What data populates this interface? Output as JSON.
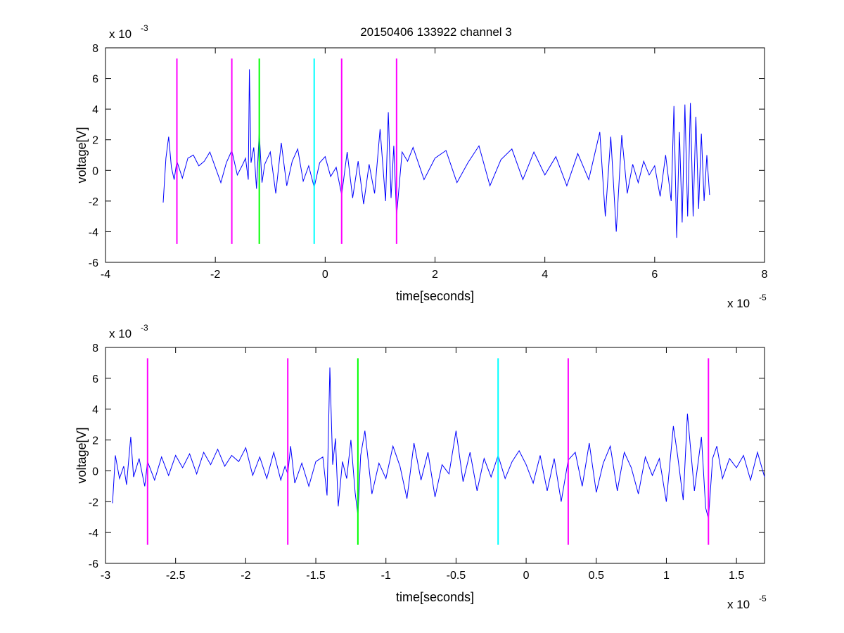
{
  "title": "20150406 133922 channel 3",
  "chart_data": [
    {
      "type": "line",
      "xlabel": "time[seconds]",
      "ylabel": "voltage[V]",
      "x_multiplier_label": "x 10",
      "x_multiplier_exp": "-5",
      "y_multiplier_label": "x 10",
      "y_multiplier_exp": "-3",
      "xlim": [
        -4,
        8
      ],
      "ylim": [
        -6,
        8
      ],
      "xticks": [
        -4,
        -2,
        0,
        2,
        4,
        6,
        8
      ],
      "yticks": [
        -6,
        -4,
        -2,
        0,
        2,
        4,
        6,
        8
      ],
      "xtick_labels": [
        "-4",
        "-2",
        "0",
        "2",
        "4",
        "6",
        "8"
      ],
      "ytick_labels": [
        "-6",
        "-4",
        "-2",
        "0",
        "2",
        "4",
        "6",
        "8"
      ],
      "grid": false,
      "line_color": "#0000ff",
      "series": [
        {
          "x": [
            -2.95,
            -2.9,
            -2.85,
            -2.8,
            -2.75,
            -2.7,
            -2.6,
            -2.5,
            -2.4,
            -2.3,
            -2.2,
            -2.1,
            -2.0,
            -1.9,
            -1.8,
            -1.7,
            -1.6,
            -1.5,
            -1.45,
            -1.4,
            -1.38,
            -1.35,
            -1.3,
            -1.25,
            -1.2,
            -1.15,
            -1.1,
            -1.0,
            -0.9,
            -0.8,
            -0.7,
            -0.6,
            -0.5,
            -0.4,
            -0.3,
            -0.2,
            -0.1,
            0.0,
            0.1,
            0.2,
            0.3,
            0.4,
            0.5,
            0.6,
            0.7,
            0.8,
            0.9,
            1.0,
            1.1,
            1.15,
            1.2,
            1.25,
            1.3,
            1.4,
            1.5,
            1.6,
            1.8,
            2.0,
            2.2,
            2.4,
            2.6,
            2.8,
            3.0,
            3.2,
            3.4,
            3.6,
            3.8,
            4.0,
            4.2,
            4.4,
            4.6,
            4.8,
            5.0,
            5.1,
            5.2,
            5.3,
            5.4,
            5.5,
            5.6,
            5.7,
            5.8,
            5.9,
            6.0,
            6.1,
            6.2,
            6.3,
            6.35,
            6.4,
            6.45,
            6.5,
            6.55,
            6.6,
            6.65,
            6.7,
            6.75,
            6.8,
            6.85,
            6.9,
            6.95,
            7.0
          ],
          "y": [
            -2.1,
            0.8,
            2.2,
            0.2,
            -0.6,
            0.6,
            -0.5,
            0.8,
            1.0,
            0.3,
            0.6,
            1.2,
            0.2,
            -0.8,
            0.5,
            1.3,
            -0.3,
            0.4,
            0.8,
            -0.6,
            6.6,
            0.5,
            1.5,
            -1.2,
            2.5,
            -0.8,
            0.4,
            1.2,
            -1.5,
            1.8,
            -1.0,
            0.6,
            1.4,
            -0.7,
            0.3,
            -1.1,
            0.5,
            0.9,
            -0.4,
            0.2,
            -1.6,
            1.2,
            -1.8,
            0.6,
            -2.2,
            0.4,
            -1.5,
            2.7,
            -2.0,
            3.8,
            -1.8,
            1.6,
            -3.0,
            1.2,
            0.6,
            1.5,
            -0.6,
            0.8,
            1.3,
            -0.8,
            0.5,
            1.6,
            -1.0,
            0.7,
            1.4,
            -0.6,
            1.2,
            -0.3,
            0.9,
            -1.0,
            1.1,
            -0.6,
            2.5,
            -3.0,
            2.2,
            -4.0,
            2.3,
            -1.5,
            0.4,
            -0.8,
            0.6,
            -0.3,
            0.3,
            -1.7,
            1.0,
            -2.0,
            4.2,
            -4.4,
            2.5,
            -3.4,
            4.3,
            -3.0,
            4.4,
            -3.0,
            3.5,
            -2.5,
            2.4,
            -2.0,
            1.0,
            -1.6
          ]
        }
      ],
      "vlines": [
        {
          "x": -2.7,
          "color": "#ff00ff"
        },
        {
          "x": -1.7,
          "color": "#ff00ff"
        },
        {
          "x": -1.2,
          "color": "#00ff00"
        },
        {
          "x": -0.2,
          "color": "#00ffff"
        },
        {
          "x": 0.3,
          "color": "#ff00ff"
        },
        {
          "x": 1.3,
          "color": "#ff00ff"
        }
      ],
      "vline_range": [
        -4.8,
        7.3
      ]
    },
    {
      "type": "line",
      "xlabel": "time[seconds]",
      "ylabel": "voltage[V]",
      "x_multiplier_label": "x 10",
      "x_multiplier_exp": "-5",
      "y_multiplier_label": "x 10",
      "y_multiplier_exp": "-3",
      "xlim": [
        -3.0,
        1.7
      ],
      "ylim": [
        -6,
        8
      ],
      "xticks": [
        -3,
        -2.5,
        -2,
        -1.5,
        -1,
        -0.5,
        0,
        0.5,
        1,
        1.5
      ],
      "yticks": [
        -6,
        -4,
        -2,
        0,
        2,
        4,
        6,
        8
      ],
      "xtick_labels": [
        "-3",
        "-2.5",
        "-2",
        "-1.5",
        "-1",
        "-0.5",
        "0",
        "0.5",
        "1",
        "1.5"
      ],
      "ytick_labels": [
        "-6",
        "-4",
        "-2",
        "0",
        "2",
        "4",
        "6",
        "8"
      ],
      "grid": false,
      "line_color": "#0000ff",
      "series": [
        {
          "x": [
            -2.95,
            -2.93,
            -2.9,
            -2.87,
            -2.85,
            -2.82,
            -2.8,
            -2.76,
            -2.72,
            -2.7,
            -2.65,
            -2.6,
            -2.55,
            -2.5,
            -2.45,
            -2.4,
            -2.35,
            -2.3,
            -2.25,
            -2.2,
            -2.15,
            -2.1,
            -2.05,
            -2.0,
            -1.95,
            -1.9,
            -1.85,
            -1.8,
            -1.75,
            -1.72,
            -1.7,
            -1.68,
            -1.65,
            -1.6,
            -1.55,
            -1.5,
            -1.45,
            -1.42,
            -1.4,
            -1.38,
            -1.36,
            -1.34,
            -1.31,
            -1.28,
            -1.25,
            -1.22,
            -1.2,
            -1.18,
            -1.15,
            -1.1,
            -1.05,
            -1.0,
            -0.95,
            -0.9,
            -0.85,
            -0.8,
            -0.75,
            -0.7,
            -0.65,
            -0.6,
            -0.55,
            -0.5,
            -0.45,
            -0.4,
            -0.35,
            -0.3,
            -0.25,
            -0.2,
            -0.15,
            -0.1,
            -0.05,
            0.0,
            0.05,
            0.1,
            0.15,
            0.2,
            0.25,
            0.3,
            0.35,
            0.4,
            0.45,
            0.5,
            0.55,
            0.6,
            0.65,
            0.7,
            0.75,
            0.8,
            0.85,
            0.9,
            0.95,
            1.0,
            1.05,
            1.08,
            1.12,
            1.15,
            1.2,
            1.25,
            1.28,
            1.3,
            1.33,
            1.36,
            1.4,
            1.45,
            1.5,
            1.55,
            1.6,
            1.65,
            1.7
          ],
          "y": [
            -2.1,
            1.0,
            -0.5,
            0.3,
            -0.9,
            2.2,
            -0.4,
            0.8,
            -1.0,
            0.6,
            -0.6,
            0.9,
            -0.3,
            1.0,
            0.2,
            1.1,
            -0.2,
            1.2,
            0.4,
            1.4,
            0.3,
            1.0,
            0.6,
            1.5,
            -0.3,
            0.9,
            -0.5,
            1.2,
            -0.6,
            0.3,
            -0.2,
            1.6,
            -0.8,
            0.5,
            -1.0,
            0.6,
            0.9,
            -1.6,
            6.7,
            0.4,
            2.1,
            -2.3,
            0.6,
            -0.5,
            2.0,
            -1.4,
            -2.9,
            1.0,
            2.6,
            -1.5,
            0.5,
            -0.5,
            1.6,
            0.3,
            -1.8,
            1.8,
            -0.6,
            1.2,
            -1.7,
            0.4,
            -0.2,
            2.6,
            -0.7,
            1.2,
            -1.3,
            0.8,
            -0.4,
            1.0,
            -0.5,
            0.6,
            1.3,
            0.4,
            -0.8,
            1.0,
            -1.3,
            0.8,
            -2.0,
            0.7,
            1.2,
            -1.0,
            1.8,
            -1.4,
            0.5,
            1.6,
            -1.3,
            1.2,
            0.2,
            -1.5,
            0.9,
            -0.3,
            0.8,
            -2.0,
            2.9,
            1.0,
            -1.9,
            3.7,
            -1.3,
            2.2,
            -2.4,
            -3.1,
            0.8,
            1.6,
            -0.5,
            0.8,
            0.2,
            1.0,
            -0.6,
            1.2,
            -0.4
          ]
        }
      ],
      "vlines": [
        {
          "x": -2.7,
          "color": "#ff00ff"
        },
        {
          "x": -1.7,
          "color": "#ff00ff"
        },
        {
          "x": -1.2,
          "color": "#00ff00"
        },
        {
          "x": -0.2,
          "color": "#00ffff"
        },
        {
          "x": 0.3,
          "color": "#ff00ff"
        },
        {
          "x": 1.3,
          "color": "#ff00ff"
        }
      ],
      "vline_range": [
        -4.8,
        7.3
      ]
    }
  ]
}
